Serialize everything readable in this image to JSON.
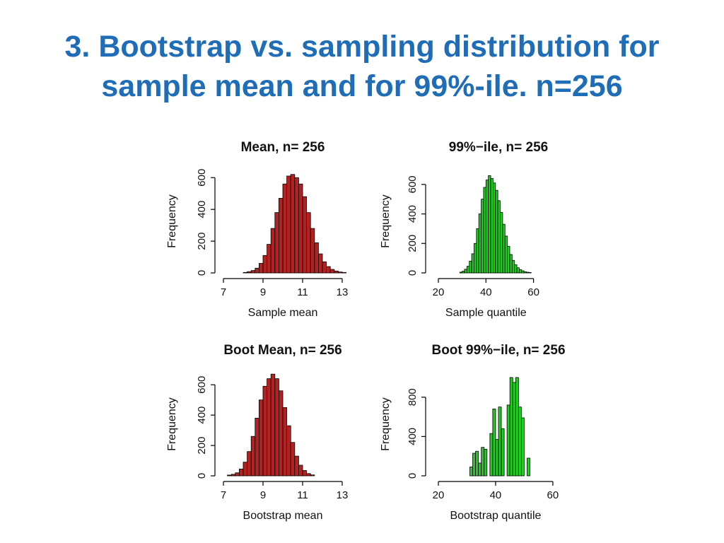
{
  "slide": {
    "title_line1": "3. Bootstrap vs. sampling distribution for",
    "title_line2": "sample mean and for 99%-ile. n=256"
  },
  "chart_data": [
    {
      "type": "bar",
      "title": "Mean, n= 256",
      "xlabel": "Sample mean",
      "ylabel": "Frequency",
      "xlim": [
        7,
        13
      ],
      "xticks": [
        7,
        9,
        11,
        13
      ],
      "ylim": [
        0,
        650
      ],
      "yticks": [
        0,
        200,
        400,
        600
      ],
      "color": "#B22222",
      "bins": {
        "start": 8.0,
        "width": 0.2
      },
      "values": [
        3,
        8,
        15,
        30,
        60,
        110,
        180,
        280,
        380,
        470,
        560,
        610,
        620,
        600,
        560,
        480,
        380,
        280,
        190,
        120,
        70,
        40,
        22,
        12,
        6,
        3
      ]
    },
    {
      "type": "bar",
      "title": "99%−ile, n= 256",
      "xlabel": "Sample quantile",
      "ylabel": "Frequency",
      "xlim": [
        20,
        72
      ],
      "xticks": [
        20,
        40,
        60
      ],
      "ylim": [
        0,
        700
      ],
      "yticks": [
        0,
        200,
        400,
        600
      ],
      "color": "#22CC22",
      "bins": {
        "start": 29,
        "width": 1.0
      },
      "values": [
        5,
        12,
        25,
        45,
        80,
        130,
        200,
        300,
        400,
        500,
        580,
        630,
        660,
        640,
        610,
        560,
        490,
        410,
        330,
        250,
        180,
        125,
        85,
        55,
        35,
        22,
        14,
        8,
        5,
        3
      ]
    },
    {
      "type": "bar",
      "title": "Boot Mean, n= 256",
      "xlabel": "Bootstrap mean",
      "ylabel": "Frequency",
      "xlim": [
        7,
        13
      ],
      "xticks": [
        7,
        9,
        11,
        13
      ],
      "ylim": [
        0,
        680
      ],
      "yticks": [
        0,
        200,
        400,
        600
      ],
      "color": "#B22222",
      "bins": {
        "start": 7.2,
        "width": 0.2
      },
      "values": [
        5,
        10,
        20,
        45,
        90,
        160,
        260,
        380,
        500,
        590,
        640,
        670,
        640,
        560,
        450,
        330,
        220,
        130,
        70,
        35,
        15,
        6
      ]
    },
    {
      "type": "bar",
      "title": "Boot 99%−ile, n= 256",
      "xlabel": "Bootstrap quantile",
      "ylabel": "Frequency",
      "xlim": [
        20,
        62
      ],
      "xticks": [
        20,
        40,
        60
      ],
      "ylim": [
        0,
        1050
      ],
      "yticks": [
        0,
        400,
        800
      ],
      "color": "#22CC22",
      "bins": {
        "start": 31,
        "width": 1.0
      },
      "values": [
        90,
        230,
        250,
        130,
        290,
        270,
        0,
        430,
        680,
        370,
        700,
        480,
        0,
        720,
        1000,
        950,
        1000,
        700,
        590,
        0,
        180
      ]
    }
  ]
}
